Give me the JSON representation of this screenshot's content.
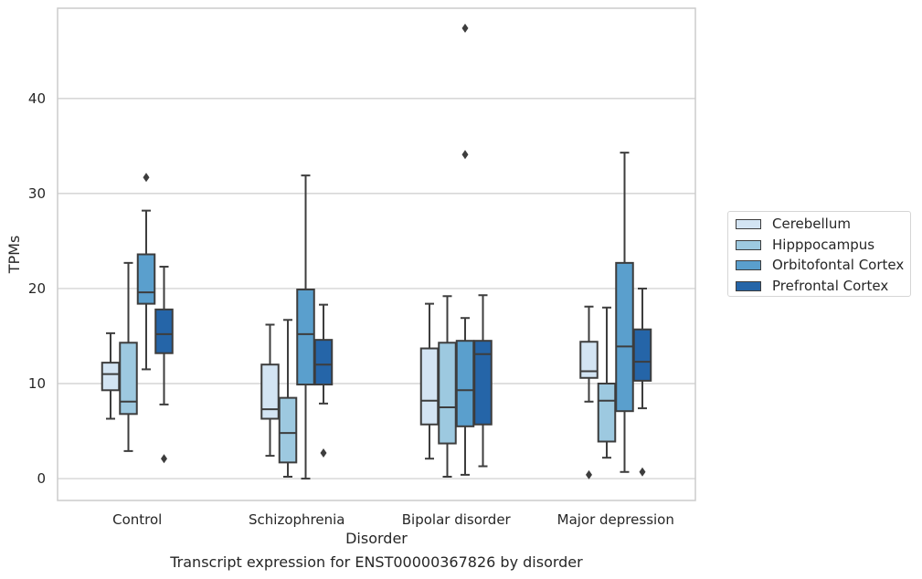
{
  "caption": "Transcript expression for ENST00000367826 by disorder",
  "chart_data": {
    "type": "box",
    "xlabel": "Disorder",
    "ylabel": "TPMs",
    "ylim": [
      -2.3,
      49.5
    ],
    "yticks": [
      0,
      10,
      20,
      30,
      40
    ],
    "grid": "horizontal",
    "legend_position": "right",
    "categories": [
      "Control",
      "Schizophrenia",
      "Bipolar disorder",
      "Major depression"
    ],
    "series": [
      {
        "name": "Cerebellum",
        "color": "#d3e4f3",
        "boxes": [
          {
            "whisker_low": 6.3,
            "q1": 9.3,
            "median": 11.0,
            "q3": 12.2,
            "whisker_high": 15.3,
            "outliers": []
          },
          {
            "whisker_low": 2.4,
            "q1": 6.3,
            "median": 7.3,
            "q3": 12.0,
            "whisker_high": 16.2,
            "outliers": []
          },
          {
            "whisker_low": 2.1,
            "q1": 5.7,
            "median": 8.2,
            "q3": 13.7,
            "whisker_high": 18.4,
            "outliers": []
          },
          {
            "whisker_low": 8.1,
            "q1": 10.6,
            "median": 11.3,
            "q3": 14.4,
            "whisker_high": 18.1,
            "outliers": [
              0.4
            ]
          }
        ]
      },
      {
        "name": "Hipppocampus",
        "color": "#9dc9e0",
        "boxes": [
          {
            "whisker_low": 2.9,
            "q1": 6.8,
            "median": 8.1,
            "q3": 14.3,
            "whisker_high": 22.7,
            "outliers": []
          },
          {
            "whisker_low": 0.2,
            "q1": 1.7,
            "median": 4.8,
            "q3": 8.5,
            "whisker_high": 16.7,
            "outliers": []
          },
          {
            "whisker_low": 0.2,
            "q1": 3.7,
            "median": 7.5,
            "q3": 14.3,
            "whisker_high": 19.2,
            "outliers": []
          },
          {
            "whisker_low": 2.2,
            "q1": 3.9,
            "median": 8.2,
            "q3": 10.0,
            "whisker_high": 18.0,
            "outliers": []
          }
        ]
      },
      {
        "name": "Orbitofontal Cortex",
        "color": "#5a9fcd",
        "boxes": [
          {
            "whisker_low": 11.5,
            "q1": 18.4,
            "median": 19.6,
            "q3": 23.6,
            "whisker_high": 28.2,
            "outliers": [
              31.7
            ]
          },
          {
            "whisker_low": 0.0,
            "q1": 9.9,
            "median": 15.2,
            "q3": 19.9,
            "whisker_high": 31.9,
            "outliers": []
          },
          {
            "whisker_low": 0.4,
            "q1": 5.5,
            "median": 9.3,
            "q3": 14.5,
            "whisker_high": 16.9,
            "outliers": [
              34.1,
              47.4
            ]
          },
          {
            "whisker_low": 0.7,
            "q1": 7.1,
            "median": 13.9,
            "q3": 22.7,
            "whisker_high": 34.3,
            "outliers": []
          }
        ]
      },
      {
        "name": "Prefrontal Cortex",
        "color": "#2565a8",
        "boxes": [
          {
            "whisker_low": 7.8,
            "q1": 13.2,
            "median": 15.2,
            "q3": 17.8,
            "whisker_high": 22.3,
            "outliers": [
              2.1
            ]
          },
          {
            "whisker_low": 7.9,
            "q1": 9.9,
            "median": 12.0,
            "q3": 14.6,
            "whisker_high": 18.3,
            "outliers": [
              2.7
            ]
          },
          {
            "whisker_low": 1.3,
            "q1": 5.7,
            "median": 13.1,
            "q3": 14.5,
            "whisker_high": 19.3,
            "outliers": []
          },
          {
            "whisker_low": 7.4,
            "q1": 10.3,
            "median": 12.3,
            "q3": 15.7,
            "whisker_high": 20.0,
            "outliers": [
              0.7
            ]
          }
        ]
      }
    ]
  }
}
